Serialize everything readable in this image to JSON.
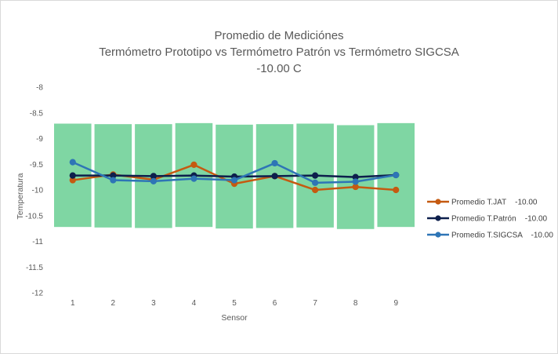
{
  "chart_data": {
    "type": "line",
    "title_lines": [
      "Promedio de Mediciónes",
      "Termómetro Prototipo vs Termómetro Patrón vs Termómetro SIGCSA",
      "-10.00 C"
    ],
    "xlabel": "Sensor",
    "ylabel": "Temperatura",
    "categories": [
      "1",
      "2",
      "3",
      "4",
      "5",
      "6",
      "7",
      "8",
      "9"
    ],
    "ylim": [
      -12,
      -8
    ],
    "yticks": [
      -8,
      -8.5,
      -9,
      -9.5,
      -10,
      -10.5,
      -11,
      -11.5,
      -12
    ],
    "ytick_labels": [
      "-8",
      "-8.5",
      "-9",
      "-9.5",
      "-10",
      "-10.5",
      "-11",
      "-11.5",
      "-12"
    ],
    "grid": false,
    "legend_position": "right",
    "tolerance_band": {
      "color": "#7fd6a3",
      "upper": [
        -8.71,
        -8.72,
        -8.72,
        -8.7,
        -8.73,
        -8.72,
        -8.71,
        -8.74,
        -8.7
      ],
      "lower": [
        -10.72,
        -10.73,
        -10.74,
        -10.72,
        -10.75,
        -10.74,
        -10.73,
        -10.76,
        -10.72
      ]
    },
    "series": [
      {
        "name": "Promedio T.JAT    -10.00",
        "color": "#c55a11",
        "values": [
          -9.81,
          -9.7,
          -9.8,
          -9.51,
          -9.88,
          -9.73,
          -10.0,
          -9.94,
          -10.0
        ]
      },
      {
        "name": "Promedio T.Patrón    -10.00",
        "color": "#0d1f4c",
        "values": [
          -9.72,
          -9.72,
          -9.73,
          -9.72,
          -9.74,
          -9.73,
          -9.72,
          -9.75,
          -9.71
        ]
      },
      {
        "name": "Promedio T.SIGCSA    -10.00",
        "color": "#2e75b6",
        "values": [
          -9.46,
          -9.81,
          -9.83,
          -9.78,
          -9.81,
          -9.48,
          -9.86,
          -9.84,
          -9.71
        ]
      }
    ]
  }
}
